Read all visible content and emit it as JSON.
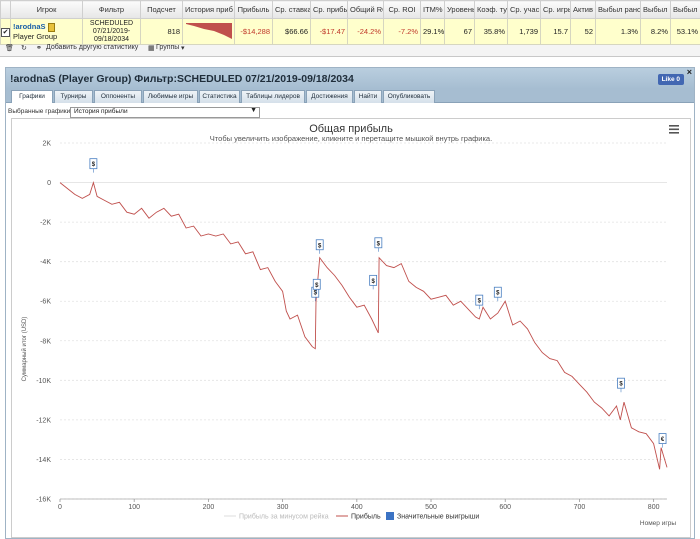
{
  "grid": {
    "headers": [
      "Игрок",
      "Фильтр",
      "Подсчет",
      "История приб",
      "Прибыль",
      "Ср. ставка",
      "Ср. прибыл",
      "Общий RC",
      "Ср. ROI",
      "ITM%",
      "Уровень",
      "Коэф. ту",
      "Ср. учас",
      "Ср. игрь",
      "Актив",
      "Выбыл рано",
      "Выбыл р",
      "Выбыл поз"
    ],
    "row": {
      "player_name": "!arodnaS",
      "player_group": "Player Group",
      "filter": "SCHEDULED 07/21/2019-09/18/2034",
      "count": "818",
      "profit": "-$14,288",
      "avg_stake": "$66.66",
      "avg_profit": "-$17.47",
      "total_roi": "-24.2%",
      "avg_roi": "-7.2%",
      "itm": "29.1%",
      "level": "67",
      "coef": "35.8%",
      "avg_entrants": "1,739",
      "avg_games": "15.7",
      "active": "52",
      "early_out": "1.3%",
      "early_out2": "8.2%",
      "late_out": "53.1%"
    },
    "toolbar": {
      "add_stat": "Добавить другую статистику",
      "groups": "Группы"
    }
  },
  "panel": {
    "title": "!arodnaS (Player Group) Фильтр:SCHEDULED 07/21/2019-09/18/2034",
    "like": "Like 0",
    "close": "×",
    "tabs": [
      "Графики",
      "Турниры",
      "Оппоненты",
      "Любимые игры",
      "Статистика",
      "Таблицы лидеров",
      "Достижения",
      "Найти",
      "Опубликовать"
    ],
    "active_tab": 0,
    "graph_label": "Выбранные графики:",
    "graph_value": "История прибыли"
  },
  "chart_data": {
    "type": "line",
    "title": "Общая прибыль",
    "subtitle": "Чтобы увеличить изображение, кликните и перетащите мышкой внутрь графика.",
    "xlabel": "Номер игры",
    "ylabel": "Суммарный итог (USD)",
    "xlim": [
      0,
      818
    ],
    "ylim": [
      -16000,
      2000
    ],
    "xticks": [
      0,
      100,
      200,
      300,
      400,
      500,
      600,
      700,
      800
    ],
    "yticks": [
      2000,
      0,
      -2000,
      -4000,
      -6000,
      -8000,
      -10000,
      -12000,
      -14000,
      -16000
    ],
    "ytick_labels": [
      "2K",
      "0",
      "-2K",
      "-4K",
      "-6K",
      "-8K",
      "-10K",
      "-12K",
      "-14K",
      "-16K"
    ],
    "grid": true,
    "legend_position": "bottom",
    "legend": [
      "Прибыль за минусом рейка",
      "Прибыль",
      "Значительные выигрыши"
    ],
    "series": [
      {
        "name": "Прибыль",
        "color": "#c0504d",
        "x": [
          0,
          10,
          20,
          30,
          40,
          45,
          50,
          60,
          70,
          80,
          90,
          100,
          110,
          120,
          130,
          140,
          150,
          160,
          170,
          180,
          190,
          200,
          210,
          220,
          230,
          240,
          250,
          260,
          270,
          280,
          290,
          300,
          305,
          310,
          320,
          330,
          340,
          344,
          345,
          350,
          360,
          370,
          380,
          390,
          400,
          410,
          420,
          429,
          430,
          440,
          450,
          460,
          470,
          480,
          490,
          500,
          510,
          520,
          530,
          540,
          550,
          560,
          565,
          570,
          580,
          590,
          600,
          610,
          620,
          630,
          640,
          650,
          660,
          670,
          680,
          690,
          700,
          710,
          720,
          730,
          740,
          750,
          755,
          760,
          770,
          780,
          790,
          800,
          808,
          810,
          818
        ],
        "y": [
          0,
          -300,
          -600,
          -800,
          -600,
          0,
          -700,
          -900,
          -1100,
          -1000,
          -1500,
          -1600,
          -1300,
          -1800,
          -1500,
          -1300,
          -1700,
          -1600,
          -2300,
          -2200,
          -2700,
          -2600,
          -2700,
          -2600,
          -3100,
          -3000,
          -3600,
          -3500,
          -4400,
          -4300,
          -5000,
          -5500,
          -6500,
          -6900,
          -6700,
          -7800,
          -8300,
          -8400,
          -6000,
          -3800,
          -4300,
          -4700,
          -5200,
          -5800,
          -6300,
          -6200,
          -6900,
          -7600,
          -3800,
          -4200,
          -4300,
          -4100,
          -5000,
          -5300,
          -5500,
          -5900,
          -5800,
          -5700,
          -6200,
          -6000,
          -6400,
          -6800,
          -6900,
          -6300,
          -6900,
          -6600,
          -6000,
          -7200,
          -7000,
          -7400,
          -8100,
          -8600,
          -8900,
          -9000,
          -9600,
          -9800,
          -10200,
          -10600,
          -11100,
          -11400,
          -11800,
          -11300,
          -12000,
          -11100,
          -12400,
          -12600,
          -12700,
          -13200,
          -14500,
          -13400,
          -14400
        ]
      }
    ],
    "significant_wins": [
      {
        "x": 45,
        "y": 500,
        "label": "$"
      },
      {
        "x": 344,
        "y": -6000,
        "label": "$"
      },
      {
        "x": 346,
        "y": -5600,
        "label": "$"
      },
      {
        "x": 350,
        "y": -3600,
        "label": "$"
      },
      {
        "x": 422,
        "y": -5400,
        "label": "$"
      },
      {
        "x": 429,
        "y": -3500,
        "label": "$"
      },
      {
        "x": 565,
        "y": -6400,
        "label": "$"
      },
      {
        "x": 590,
        "y": -6000,
        "label": "$"
      },
      {
        "x": 756,
        "y": -10600,
        "label": "$"
      },
      {
        "x": 812,
        "y": -13400,
        "label": "€"
      }
    ]
  }
}
